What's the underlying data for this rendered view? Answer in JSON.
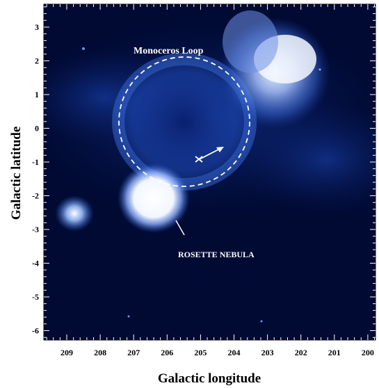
{
  "figure": {
    "xlabel": "Galactic longitude",
    "ylabel": "Galactic latitude",
    "x_ticks": [
      "209",
      "208",
      "207",
      "206",
      "205",
      "204",
      "203",
      "202",
      "201",
      "200"
    ],
    "y_ticks": [
      "3",
      "2",
      "1",
      "0",
      "-1",
      "-2",
      "-3",
      "-4",
      "-5",
      "-6"
    ],
    "annotations": {
      "loop_label": "Monoceros Loop",
      "nebula_label": "ROSETTE NEBULA"
    }
  },
  "colors": {
    "background": "#000a33",
    "emission": "#2a5fd8",
    "bright": "#ffffff",
    "annotation": "#ffffff"
  }
}
